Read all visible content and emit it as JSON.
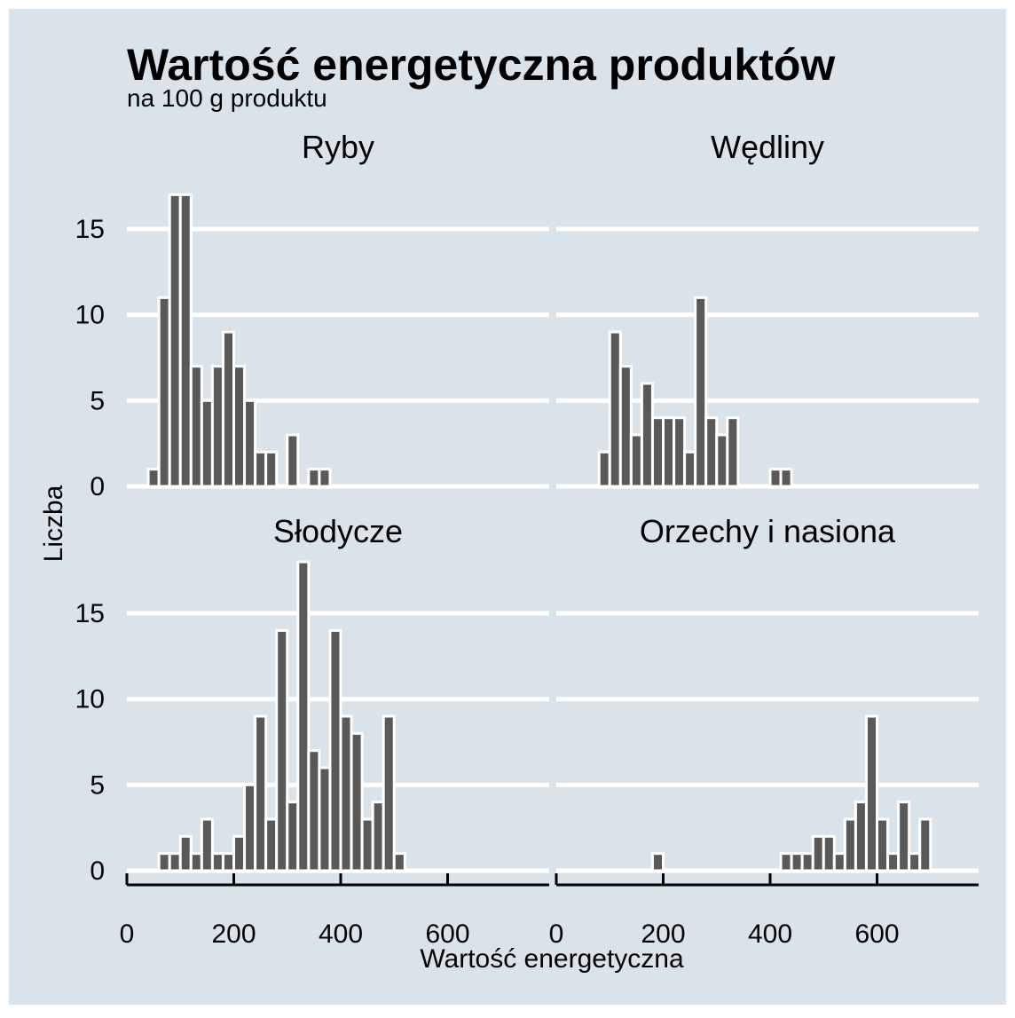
{
  "chart_data": {
    "type": "bar",
    "title": "Wartość energetyczna produktów",
    "subtitle": "na 100 g produktu",
    "xlabel": "Wartość energetyczna",
    "ylabel": "Liczba",
    "xlim": [
      0,
      790
    ],
    "ylim": [
      0,
      18
    ],
    "bin_width": 20,
    "x_ticks": [
      "0",
      "200",
      "400",
      "600"
    ],
    "y_ticks": [
      "0",
      "5",
      "10",
      "15"
    ],
    "grid": true,
    "colors": {
      "background": "#dae3ea",
      "bar_fill": "#595959",
      "bar_stroke": "#ffffff",
      "grid": "#ffffff",
      "text": "#000000"
    },
    "panels": [
      {
        "name": "Ryby",
        "bins": [
          [
            40,
            1
          ],
          [
            60,
            11
          ],
          [
            80,
            17
          ],
          [
            100,
            17
          ],
          [
            120,
            7
          ],
          [
            140,
            5
          ],
          [
            160,
            7
          ],
          [
            180,
            9
          ],
          [
            200,
            7
          ],
          [
            220,
            5
          ],
          [
            240,
            2
          ],
          [
            260,
            2
          ],
          [
            300,
            3
          ],
          [
            340,
            1
          ],
          [
            360,
            1
          ]
        ]
      },
      {
        "name": "Wędliny",
        "bins": [
          [
            80,
            2
          ],
          [
            100,
            9
          ],
          [
            120,
            7
          ],
          [
            140,
            3
          ],
          [
            160,
            6
          ],
          [
            180,
            4
          ],
          [
            200,
            4
          ],
          [
            220,
            4
          ],
          [
            240,
            2
          ],
          [
            260,
            11
          ],
          [
            280,
            4
          ],
          [
            300,
            3
          ],
          [
            320,
            4
          ],
          [
            400,
            1
          ],
          [
            420,
            1
          ]
        ]
      },
      {
        "name": "Słodycze",
        "bins": [
          [
            60,
            1
          ],
          [
            80,
            1
          ],
          [
            100,
            2
          ],
          [
            120,
            1
          ],
          [
            140,
            3
          ],
          [
            160,
            1
          ],
          [
            180,
            1
          ],
          [
            200,
            2
          ],
          [
            220,
            5
          ],
          [
            240,
            9
          ],
          [
            260,
            3
          ],
          [
            280,
            14
          ],
          [
            300,
            4
          ],
          [
            320,
            18
          ],
          [
            340,
            7
          ],
          [
            360,
            6
          ],
          [
            380,
            14
          ],
          [
            400,
            9
          ],
          [
            420,
            8
          ],
          [
            440,
            3
          ],
          [
            460,
            4
          ],
          [
            480,
            9
          ],
          [
            500,
            1
          ]
        ]
      },
      {
        "name": "Orzechy i nasiona",
        "bins": [
          [
            180,
            1
          ],
          [
            420,
            1
          ],
          [
            440,
            1
          ],
          [
            460,
            1
          ],
          [
            480,
            2
          ],
          [
            500,
            2
          ],
          [
            520,
            1
          ],
          [
            540,
            3
          ],
          [
            560,
            4
          ],
          [
            580,
            9
          ],
          [
            600,
            3
          ],
          [
            620,
            1
          ],
          [
            640,
            4
          ],
          [
            660,
            1
          ],
          [
            680,
            3
          ]
        ]
      }
    ]
  }
}
